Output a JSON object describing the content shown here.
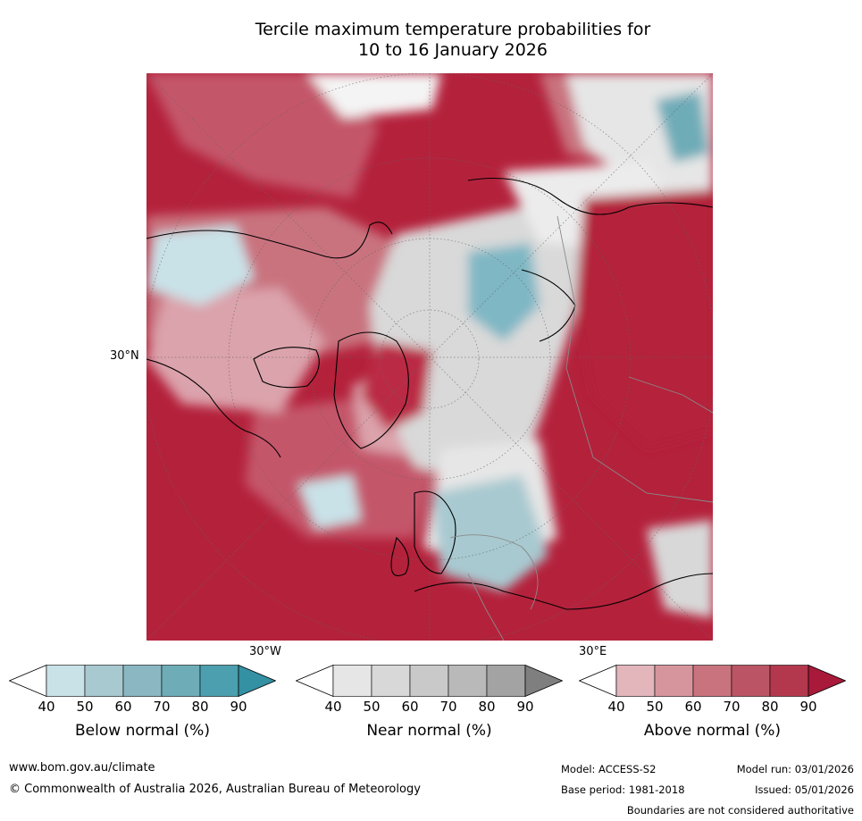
{
  "title": {
    "line1": "Tercile maximum temperature probabilities for",
    "line2": "10 to 16 January 2026"
  },
  "map": {
    "lat_label": "30°N",
    "lon_label_left": "30°W",
    "lon_label_right": "30°E"
  },
  "legends": [
    {
      "title": "Below normal (%)",
      "ticks": [
        "40",
        "50",
        "60",
        "70",
        "80",
        "90"
      ],
      "colors": [
        "#c9e2e8",
        "#a8c9d0",
        "#8ab7c2",
        "#6eacb8",
        "#4b9fae",
        "#3490a3"
      ]
    },
    {
      "title": "Near normal (%)",
      "ticks": [
        "40",
        "50",
        "60",
        "70",
        "80",
        "90"
      ],
      "colors": [
        "#e6e6e6",
        "#d8d8d8",
        "#c9c9c9",
        "#b9b9b9",
        "#a3a3a3",
        "#7f7f7f"
      ]
    },
    {
      "title": "Above normal (%)",
      "ticks": [
        "40",
        "50",
        "60",
        "70",
        "80",
        "90"
      ],
      "colors": [
        "#e3b6bc",
        "#d6959d",
        "#c9737f",
        "#bb5565",
        "#b4384d",
        "#a8193a"
      ]
    }
  ],
  "footer": {
    "url": "www.bom.gov.au/climate",
    "copyright": "© Commonwealth of Australia 2026, Australian Bureau of Meteorology",
    "model": "Model: ACCESS-S2",
    "model_run": "Model run: 03/01/2026",
    "base_period": "Base period: 1981-2018",
    "issued": "Issued: 05/01/2026",
    "disclaimer": "Boundaries are not considered authoritative"
  },
  "colors": {
    "above_strong": "#b4213b",
    "above_mid": "#c4566a",
    "above_light": "#dba3ac",
    "near": "#d9d9d9",
    "below": "#7fb7c4",
    "coast": "#000000",
    "border": "#8a8a8a",
    "grid": "#666666"
  }
}
